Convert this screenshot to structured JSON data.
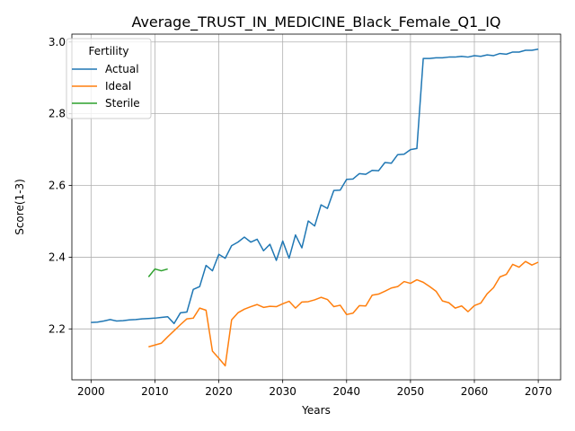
{
  "chart_data": {
    "type": "line",
    "title": "Average_TRUST_IN_MEDICINE_Black_Female_Q1_IQ",
    "xlabel": "Years",
    "ylabel": "Score(1-3)",
    "xlim": [
      1997,
      2073.5
    ],
    "ylim": [
      2.058,
      3.022
    ],
    "xticks": [
      2000,
      2010,
      2020,
      2030,
      2040,
      2050,
      2060,
      2070
    ],
    "yticks": [
      2.2,
      2.4,
      2.6,
      2.8,
      3.0
    ],
    "xtick_labels": [
      "2000",
      "2010",
      "2020",
      "2030",
      "2040",
      "2050",
      "2060",
      "2070"
    ],
    "ytick_labels": [
      "2.2",
      "2.4",
      "2.6",
      "2.8",
      "3.0"
    ],
    "grid": true,
    "legend": {
      "title": "Fertility",
      "position": "upper-left"
    },
    "series": [
      {
        "name": "Actual",
        "color": "#1f77b4",
        "x": [
          2000,
          2001,
          2002,
          2003,
          2004,
          2005,
          2006,
          2007,
          2008,
          2009,
          2010,
          2011,
          2012,
          2013,
          2014,
          2015,
          2016,
          2017,
          2018,
          2019,
          2020,
          2021,
          2022,
          2023,
          2024,
          2025,
          2026,
          2027,
          2028,
          2029,
          2030,
          2031,
          2032,
          2033,
          2034,
          2035,
          2036,
          2037,
          2038,
          2039,
          2040,
          2041,
          2042,
          2043,
          2044,
          2045,
          2046,
          2047,
          2048,
          2049,
          2050,
          2051,
          2052,
          2053,
          2054,
          2055,
          2056,
          2057,
          2058,
          2059,
          2060,
          2061,
          2062,
          2063,
          2064,
          2065,
          2066,
          2067,
          2068,
          2069,
          2070
        ],
        "y": [
          2.218,
          2.219,
          2.222,
          2.226,
          2.222,
          2.223,
          2.225,
          2.226,
          2.228,
          2.229,
          2.23,
          2.232,
          2.234,
          2.215,
          2.245,
          2.247,
          2.31,
          2.318,
          2.377,
          2.362,
          2.408,
          2.397,
          2.432,
          2.442,
          2.456,
          2.442,
          2.45,
          2.418,
          2.436,
          2.391,
          2.445,
          2.397,
          2.462,
          2.426,
          2.501,
          2.487,
          2.546,
          2.536,
          2.586,
          2.587,
          2.617,
          2.618,
          2.633,
          2.631,
          2.642,
          2.641,
          2.664,
          2.662,
          2.686,
          2.687,
          2.7,
          2.703,
          2.954,
          2.954,
          2.956,
          2.956,
          2.958,
          2.958,
          2.96,
          2.958,
          2.962,
          2.96,
          2.964,
          2.962,
          2.968,
          2.966,
          2.972,
          2.972,
          2.977,
          2.977,
          2.98
        ]
      },
      {
        "name": "Ideal",
        "color": "#ff7f0e",
        "x": [
          2009,
          2010,
          2011,
          2012,
          2013,
          2014,
          2015,
          2016,
          2017,
          2018,
          2019,
          2020,
          2021,
          2022,
          2023,
          2024,
          2025,
          2026,
          2027,
          2028,
          2029,
          2030,
          2031,
          2032,
          2033,
          2034,
          2035,
          2036,
          2037,
          2038,
          2039,
          2040,
          2041,
          2042,
          2043,
          2044,
          2045,
          2046,
          2047,
          2048,
          2049,
          2050,
          2051,
          2052,
          2053,
          2054,
          2055,
          2056,
          2057,
          2058,
          2059,
          2060,
          2061,
          2062,
          2063,
          2064,
          2065,
          2066,
          2067,
          2068,
          2069,
          2070
        ],
        "y": [
          2.15,
          2.155,
          2.16,
          2.178,
          2.195,
          2.212,
          2.228,
          2.23,
          2.258,
          2.252,
          2.138,
          2.118,
          2.097,
          2.225,
          2.245,
          2.255,
          2.262,
          2.268,
          2.26,
          2.263,
          2.262,
          2.27,
          2.277,
          2.258,
          2.275,
          2.276,
          2.281,
          2.288,
          2.282,
          2.262,
          2.266,
          2.24,
          2.244,
          2.265,
          2.264,
          2.294,
          2.297,
          2.305,
          2.314,
          2.318,
          2.332,
          2.327,
          2.337,
          2.33,
          2.318,
          2.305,
          2.278,
          2.273,
          2.258,
          2.264,
          2.248,
          2.265,
          2.272,
          2.298,
          2.315,
          2.345,
          2.352,
          2.38,
          2.372,
          2.388,
          2.378,
          2.386
        ]
      },
      {
        "name": "Sterile",
        "color": "#2ca02c",
        "x": [
          2009,
          2010,
          2011,
          2012
        ],
        "y": [
          2.345,
          2.367,
          2.362,
          2.367
        ]
      }
    ]
  }
}
